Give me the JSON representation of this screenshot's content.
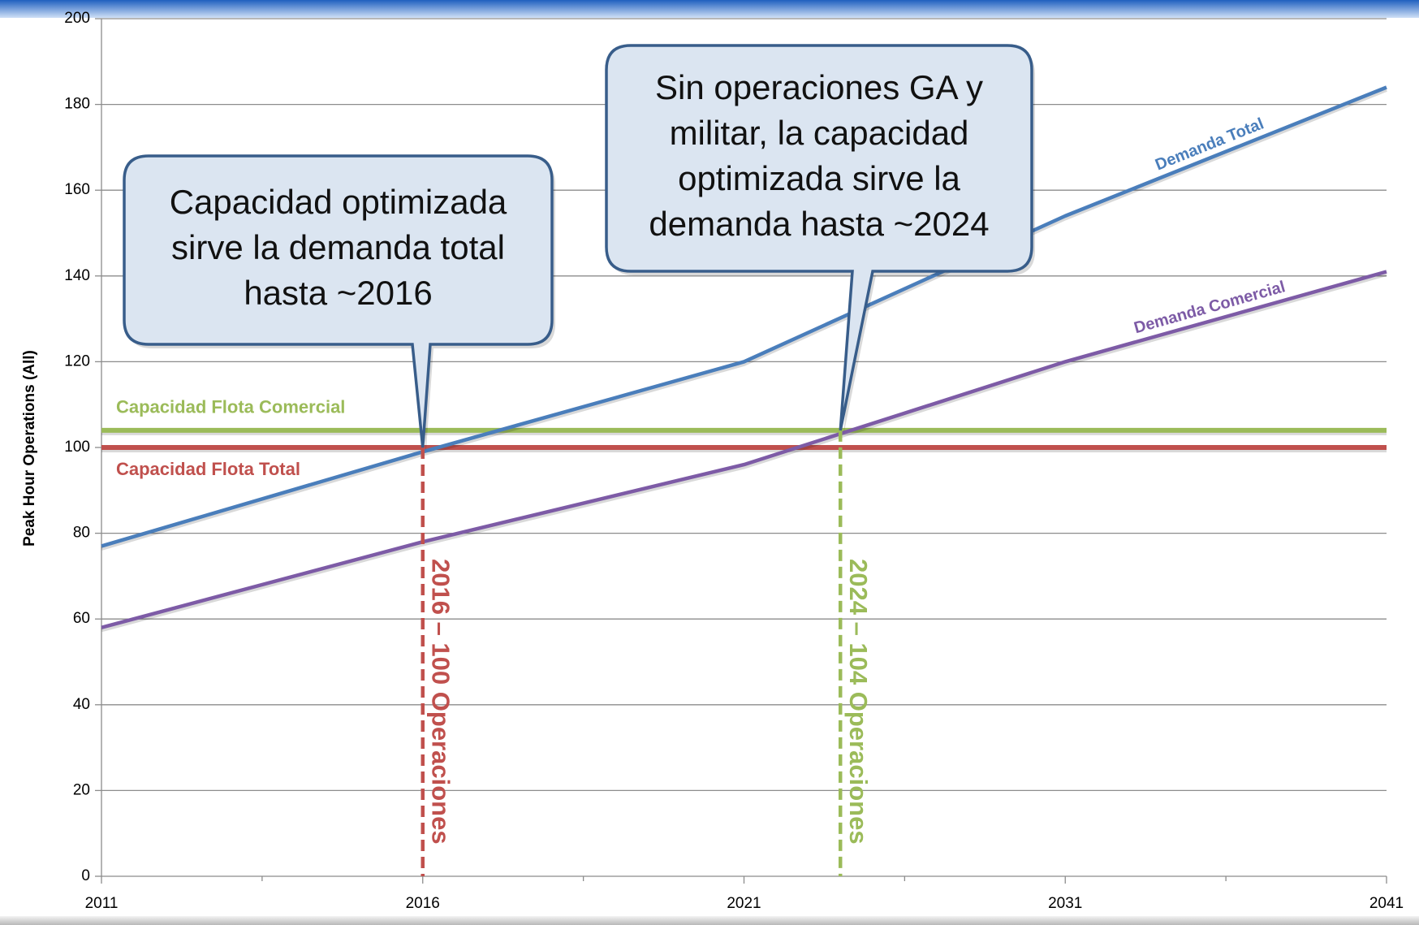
{
  "chart_data": {
    "type": "line",
    "y_label": "Peak Hour Operations (All)",
    "x": [
      2011,
      2016,
      2021,
      2031,
      2041
    ],
    "xlim": [
      2011,
      2041
    ],
    "xticks": [
      2011,
      2016,
      2021,
      2031,
      2041
    ],
    "ylim": [
      0,
      200
    ],
    "yticks": [
      0,
      20,
      40,
      60,
      80,
      100,
      120,
      140,
      160,
      180,
      200
    ],
    "grid": true,
    "series": [
      {
        "name": "Demanda Total",
        "color": "#4a7ebb",
        "values": [
          77,
          99,
          120,
          154,
          184
        ]
      },
      {
        "name": "Demanda Comercial",
        "color": "#7d5ba6",
        "values": [
          58,
          78,
          96,
          120,
          141
        ]
      }
    ],
    "hlines": [
      {
        "name": "Capacidad Flota Comercial",
        "value": 104,
        "color": "#9bbb59"
      },
      {
        "name": "Capacidad Flota Total",
        "value": 100,
        "color": "#c0504d"
      }
    ],
    "markers": [
      {
        "x": 2016,
        "y": 100,
        "label": "2016 – 100 Operaciones",
        "color": "#c0504d"
      },
      {
        "x": 2024,
        "y": 104,
        "label": "2024 – 104 Operaciones",
        "color": "#9bbb59"
      }
    ],
    "annotations": [
      {
        "lines": [
          "Capacidad optimizada",
          "sirve la demanda total",
          "hasta ~2016"
        ]
      },
      {
        "lines": [
          "Sin operaciones GA y",
          "militar, la capacidad",
          "optimizada sirve la",
          "demanda hasta ~2024"
        ]
      }
    ]
  }
}
